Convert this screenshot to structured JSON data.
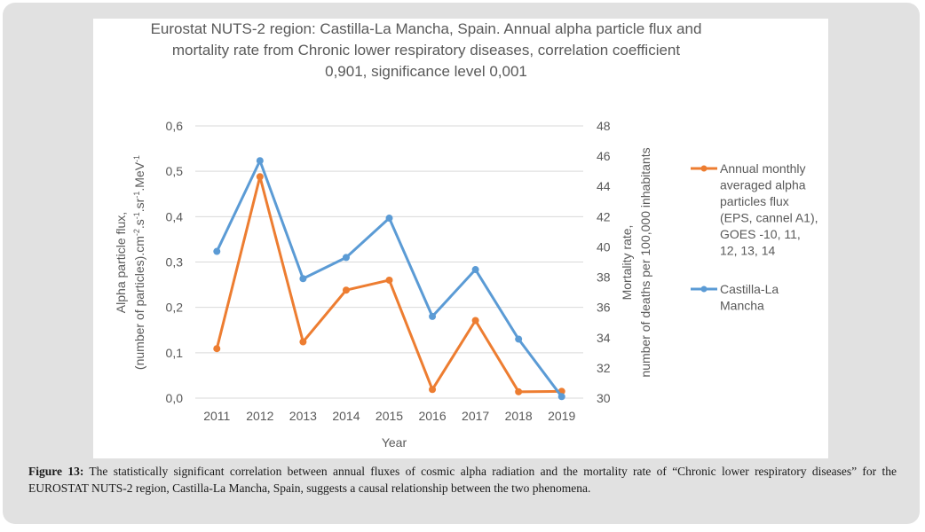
{
  "chart_data": {
    "type": "line",
    "title_lines": [
      "Eurostat NUTS-2 region: Castilla-La Mancha, Spain. Annual alpha particle flux and",
      "mortality rate from Chronic lower respiratory diseases, correlation coefficient",
      "0,901, significance level 0,001"
    ],
    "categories": [
      "2011",
      "2012",
      "2013",
      "2014",
      "2015",
      "2016",
      "2017",
      "2018",
      "2019"
    ],
    "xlabel": "Year",
    "ylabel_left_lines": [
      "Alpha particle flux,",
      "(number of particles).cm-2.s-1.sr-1.MeV-1"
    ],
    "ylabel_right_lines": [
      "Mortality rate,",
      "number of deaths per 100,000 inhabitants"
    ],
    "ylim_left": [
      0,
      0.6
    ],
    "ylim_right": [
      30,
      48
    ],
    "left_ticks": [
      "0,0",
      "0,1",
      "0,2",
      "0,3",
      "0,4",
      "0,5",
      "0,6"
    ],
    "right_ticks": [
      "30",
      "32",
      "34",
      "36",
      "38",
      "40",
      "42",
      "44",
      "46",
      "48"
    ],
    "grid": true,
    "legend_position": "right",
    "series": [
      {
        "name": "Annual monthly averaged alpha particles flux (EPS, cannel A1), GOES -10, 11, 12, 13, 14",
        "legend_lines": [
          "Annual monthly",
          "averaged alpha",
          "particles flux",
          "(EPS, cannel A1),",
          "GOES -10, 11,",
          "12, 13, 14"
        ],
        "axis": "left",
        "color": "#ED7D31",
        "values": [
          0.109,
          0.488,
          0.124,
          0.238,
          0.26,
          0.019,
          0.171,
          0.014,
          0.015
        ]
      },
      {
        "name": "Castilla-La Mancha",
        "legend_lines": [
          "Castilla-La",
          "Mancha"
        ],
        "axis": "right",
        "color": "#5B9BD5",
        "values": [
          39.7,
          45.7,
          37.9,
          39.3,
          41.9,
          35.4,
          38.5,
          33.9,
          30.1
        ]
      }
    ]
  },
  "caption": {
    "label": "Figure 13:",
    "text": " The statistically significant correlation between annual fluxes of cosmic alpha radiation and the mortality rate of “Chronic lower respiratory diseases” for the EUROSTAT NUTS-2 region, Castilla-La Mancha, Spain, suggests a causal relationship between the two phenomena."
  }
}
